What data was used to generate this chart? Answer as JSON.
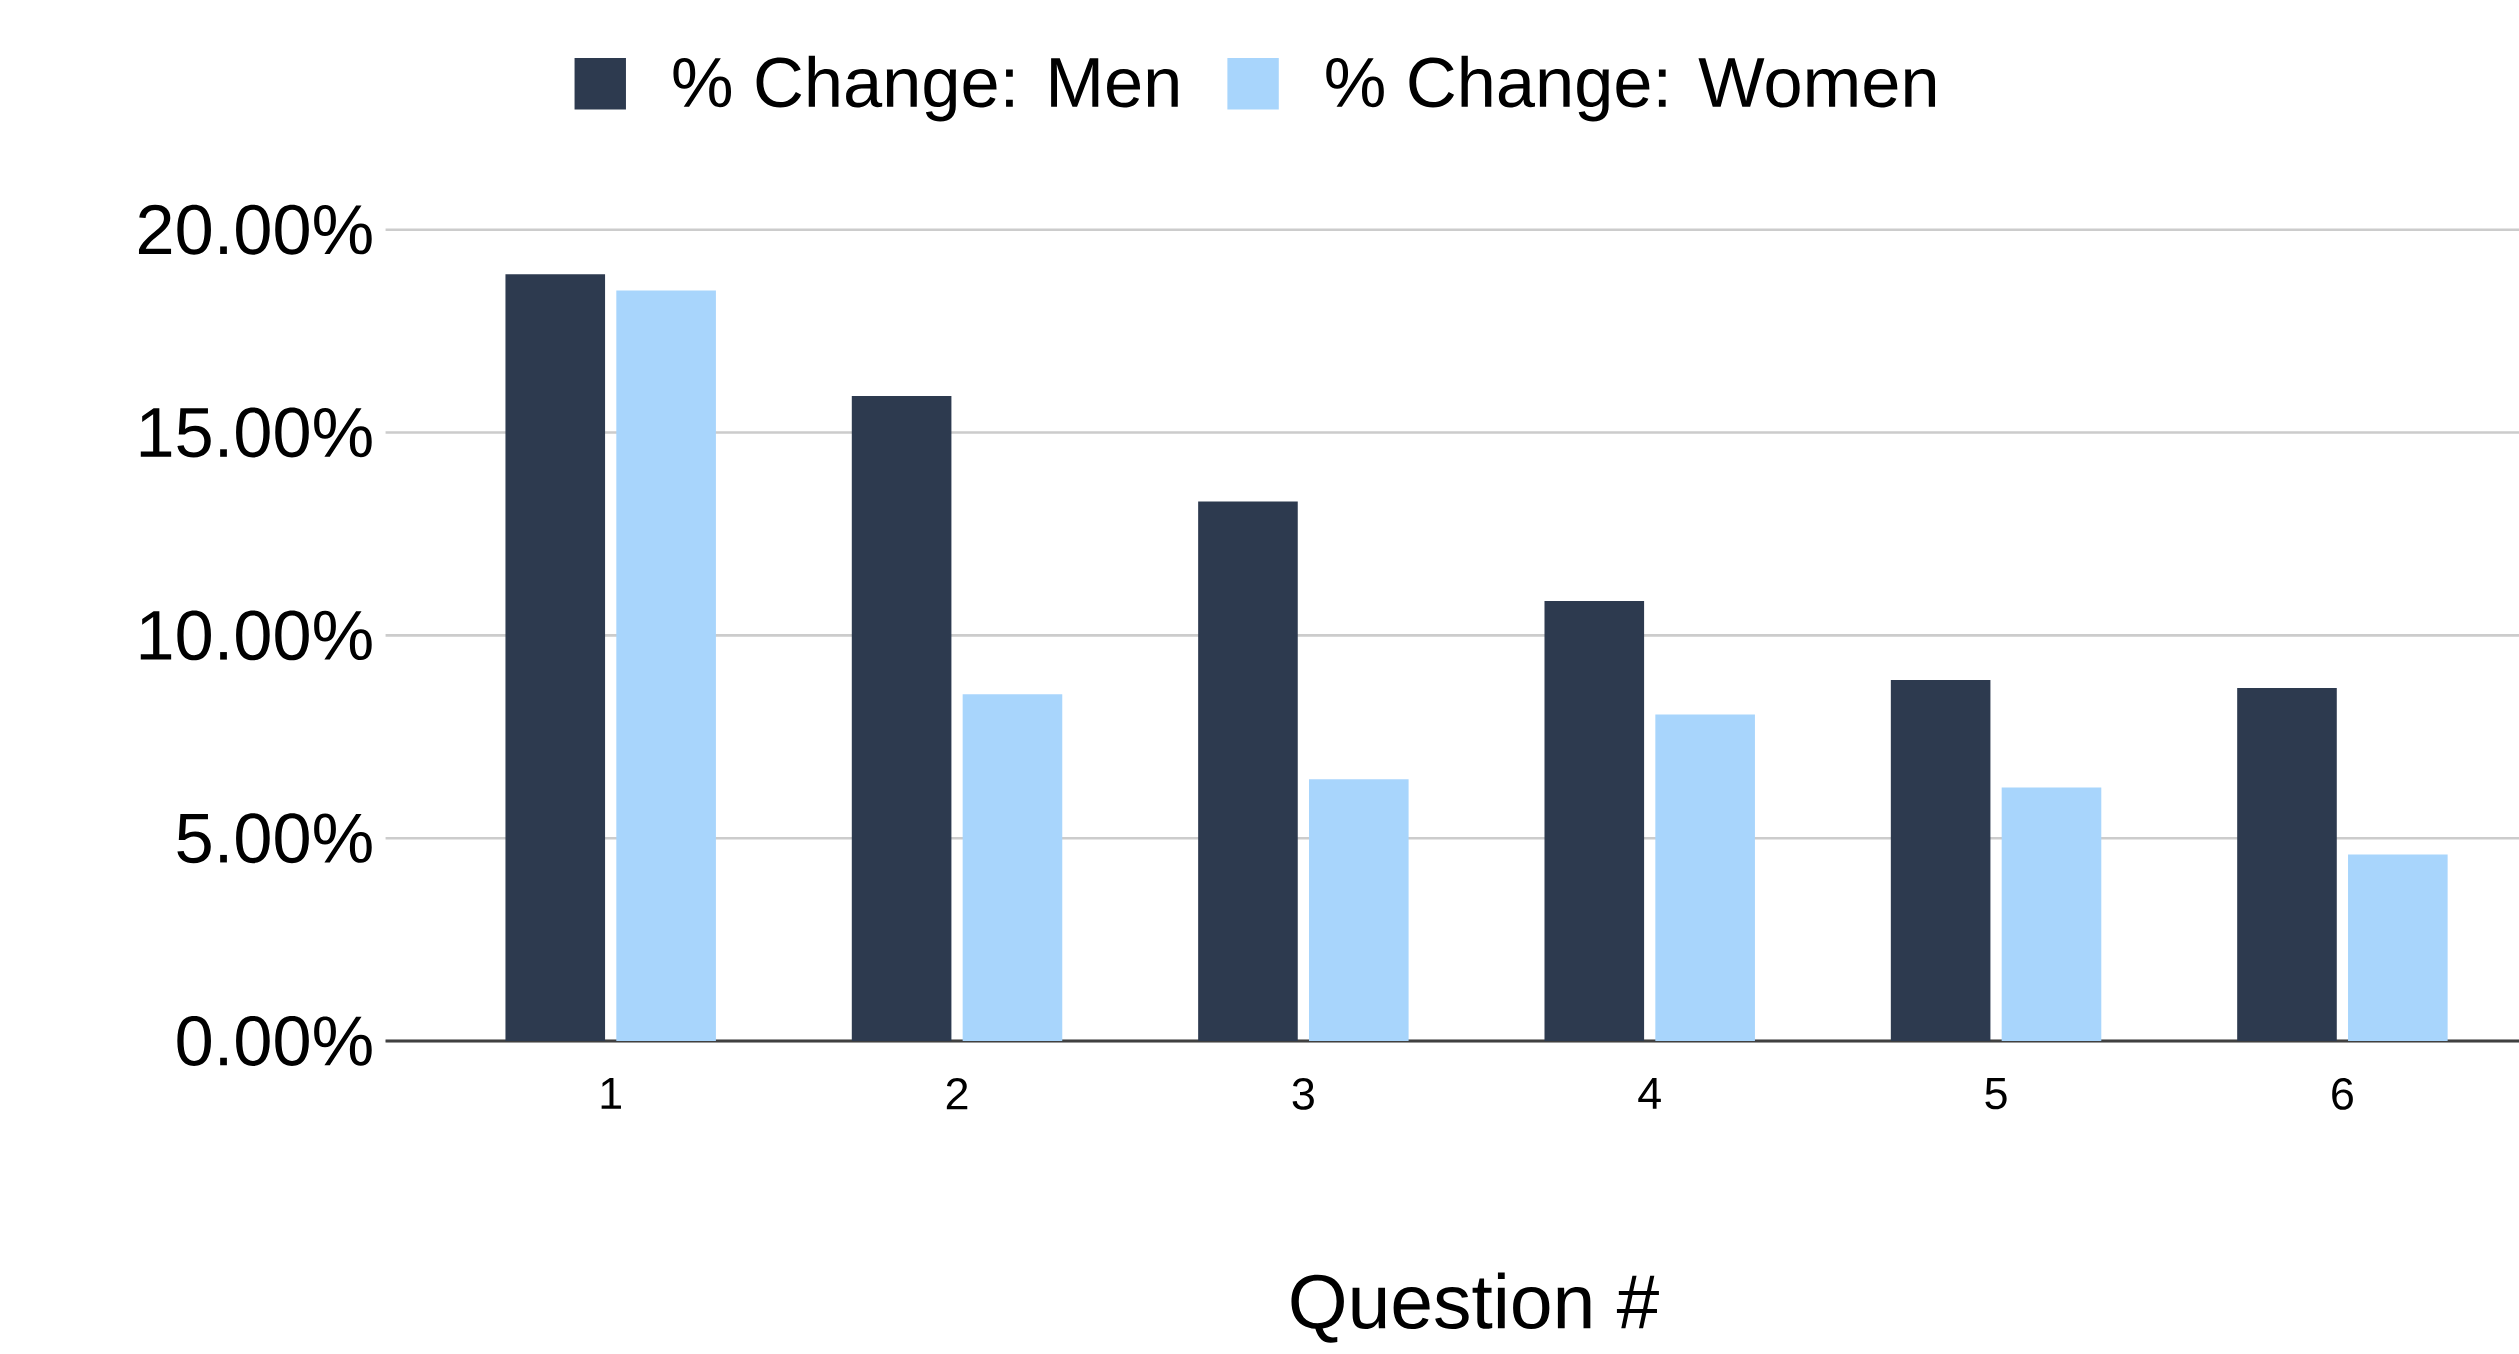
{
  "chart_data": {
    "type": "bar",
    "xlabel": "Question #",
    "categories": [
      "1",
      "2",
      "3",
      "4",
      "5",
      "6"
    ],
    "series": [
      {
        "name": "% Change: Men",
        "color": "#2d3a4f",
        "values": [
          18.9,
          15.9,
          13.3,
          10.85,
          8.9,
          8.7
        ]
      },
      {
        "name": "% Change: Women",
        "color": "#a8d5fc",
        "values": [
          18.5,
          8.55,
          6.45,
          8.05,
          6.25,
          4.6
        ]
      }
    ],
    "ylim": [
      0,
      20
    ],
    "yticks": [
      {
        "value": 0,
        "label": "0.00%"
      },
      {
        "value": 5,
        "label": "5.00%"
      },
      {
        "value": 10,
        "label": "10.00%"
      },
      {
        "value": 15,
        "label": "15.00%"
      },
      {
        "value": 20,
        "label": "20.00%"
      }
    ],
    "grid": "y",
    "legend": "top"
  }
}
